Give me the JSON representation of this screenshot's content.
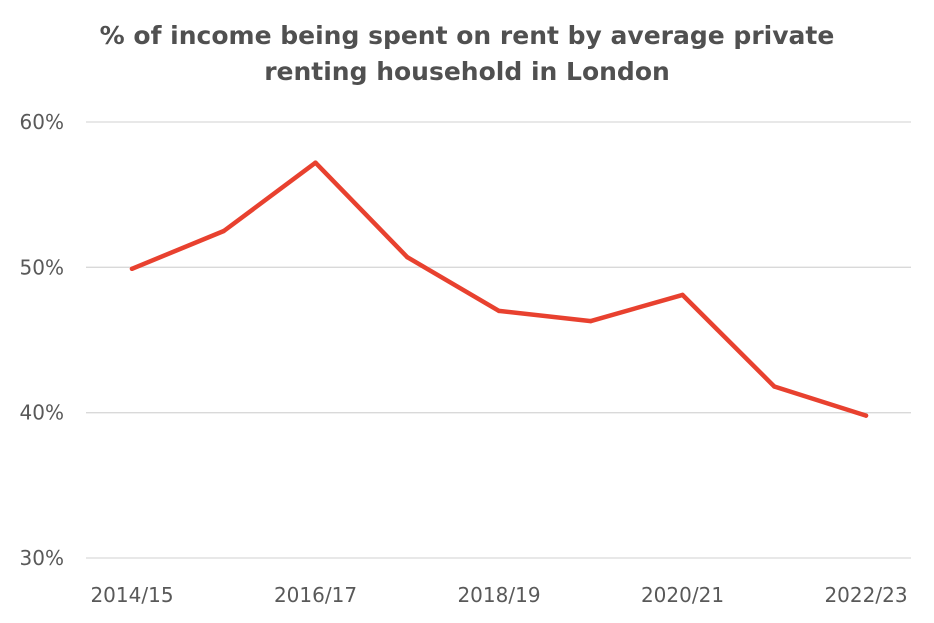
{
  "chart_data": {
    "type": "line",
    "title": "% of income being spent on rent by average private renting household in London",
    "x": [
      "2014/15",
      "2015/16",
      "2016/17",
      "2017/18",
      "2018/19",
      "2019/20",
      "2020/21",
      "2021/22",
      "2022/23"
    ],
    "x_tick_labels": [
      "2014/15",
      "2016/17",
      "2018/19",
      "2020/21",
      "2022/23"
    ],
    "series": [
      {
        "values": [
          49.9,
          52.5,
          57.2,
          50.7,
          47.0,
          46.3,
          48.1,
          41.8,
          39.8
        ],
        "color": "#e8412f"
      }
    ],
    "y_ticks": [
      "30%",
      "40%",
      "50%",
      "60%"
    ],
    "ylim": [
      30,
      60
    ],
    "grid": true,
    "gridline_color": "#d9d9d9",
    "legend": "none"
  }
}
